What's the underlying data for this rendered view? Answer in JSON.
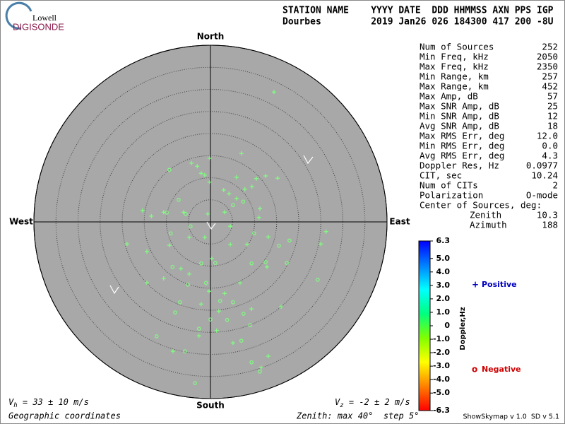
{
  "logo": {
    "small": "Lowell",
    "big": "DIGISONDE"
  },
  "header": {
    "row1": "STATION NAME    YYYY DATE  DDD HHMMSS AXN PPS IGP",
    "row2": "Dourbes         2019 Jan26 026 184300 417 200 -8U"
  },
  "stats": {
    "rows": [
      [
        "Num of Sources",
        "252"
      ],
      [
        "Min Freq, kHz",
        "2050"
      ],
      [
        "Max Freq, kHz",
        "2350"
      ],
      [
        "Min Range, km",
        "257"
      ],
      [
        "Max Range, km",
        "452"
      ],
      [
        "Max Amp, dB",
        "57"
      ],
      [
        "Max SNR Amp, dB",
        "25"
      ],
      [
        "Min SNR Amp, dB",
        "12"
      ],
      [
        "Avg SNR Amp, dB",
        "18"
      ],
      [
        "Max RMS Err, deg",
        "12.0"
      ],
      [
        "Min RMS Err, deg",
        "0.0"
      ],
      [
        "Avg RMS Err, deg",
        "4.3"
      ],
      [
        "Doppler Res, Hz",
        "0.0977"
      ],
      [
        "CIT, sec",
        "10.24"
      ],
      [
        "Num of CITs",
        "2"
      ],
      [
        "Polarization",
        "O-mode"
      ]
    ],
    "center_title": "Center of Sources, deg:",
    "center": [
      [
        "Zenith",
        "10.3"
      ],
      [
        "Azimuth",
        "188"
      ]
    ]
  },
  "chart_data": {
    "type": "skymap",
    "compass": {
      "north": "North",
      "south": "South",
      "east": "East",
      "west": "West"
    },
    "rlim": [
      0,
      40
    ],
    "rings": [
      5,
      10,
      15,
      20,
      25,
      30,
      35,
      40
    ],
    "series": [
      {
        "name": "Positive",
        "symbol": "+",
        "color": "#80ff80",
        "legend_color": "#0000c0",
        "x": [
          14.4,
          -0.2,
          7.0,
          -4.3,
          -3.0,
          -2.1,
          5.9,
          -1.3,
          -0.2,
          10.4,
          12.5,
          15.2,
          3.0,
          4.2,
          7.8,
          9.4,
          5.9,
          11.2,
          11.0,
          -15.4,
          -10.6,
          -13.4,
          -6.1,
          -0.6,
          3.2,
          4.5,
          -18.9,
          -14.4,
          -9.3,
          -4.8,
          -1.3,
          4.5,
          8.3,
          13.1,
          26.2,
          25.0,
          12.8,
          0.3,
          -4.8,
          -10.6,
          -14.4,
          -6.7,
          6.7,
          -0.3,
          3.2,
          -2.1,
          1.9,
          9.3,
          16.0,
          1.4,
          -2.6,
          13.1,
          -8.5,
          5.1,
          11.5
        ],
        "y": [
          29.4,
          14.4,
          15.5,
          13.3,
          12.6,
          11.0,
          10.1,
          10.6,
          9.0,
          9.8,
          10.4,
          9.9,
          7.2,
          6.4,
          7.4,
          8.0,
          5.3,
          3.0,
          1.0,
          2.6,
          2.2,
          1.3,
          2.2,
          1.8,
          2.2,
          -1.0,
          -5.0,
          -6.7,
          -5.3,
          -3.5,
          -3.5,
          -5.1,
          -5.1,
          -3.4,
          -2.2,
          -5.0,
          -10.2,
          -8.3,
          -11.8,
          -12.8,
          -13.8,
          -10.6,
          -13.8,
          -15.7,
          -16.2,
          -18.6,
          -20.2,
          -19.7,
          -19.2,
          -24.6,
          -25.8,
          -30.4,
          -29.3,
          -27.4,
          -33.0
        ]
      },
      {
        "name": "Negative",
        "symbol": "o",
        "color": "#80ff80",
        "legend_color": "#d00000",
        "x": [
          -9.3,
          -9.9,
          -7.2,
          -4.5,
          -9.0,
          -5.6,
          5.1,
          7.4,
          9.9,
          15.5,
          17.9,
          -8.6,
          -2.1,
          1.1,
          9.3,
          12.5,
          -5.1,
          -6.9,
          -1.0,
          2.2,
          5.1,
          7.5,
          3.8,
          0.0,
          -2.6,
          -8.0,
          -12.2,
          -5.8,
          -3.5,
          9.3,
          11.2,
          17.3,
          24.3,
          9.0,
          7.0
        ],
        "y": [
          11.8,
          2.1,
          5.0,
          -1.0,
          -2.6,
          1.8,
          3.8,
          4.6,
          -2.6,
          -5.4,
          -4.2,
          -10.2,
          -9.4,
          -9.3,
          -9.4,
          -9.1,
          -14.2,
          -18.2,
          -13.8,
          -17.9,
          -18.2,
          -20.8,
          -22.2,
          -22.1,
          -24.2,
          -20.5,
          -25.9,
          -29.3,
          -36.5,
          -31.8,
          -33.9,
          -9.3,
          -13.1,
          -23.4,
          -26.9
        ]
      }
    ],
    "colorbar": {
      "label": "Doppler,Hz",
      "lim": [
        -6.3,
        6.3
      ],
      "colors": [
        "#ff0000",
        "#ff8000",
        "#ffff00",
        "#80ff00",
        "#00ff80",
        "#00ffff",
        "#0080ff",
        "#0000ff"
      ],
      "ticks": [
        6.3,
        {
          "value": 5,
          "label": "5.0"
        },
        {
          "value": 4,
          "label": "4.0"
        },
        {
          "value": 3,
          "label": "3.0"
        },
        {
          "value": 2,
          "label": "2.0"
        },
        {
          "value": 1,
          "label": "1.0"
        },
        0,
        {
          "value": -1,
          "label": "-1.0"
        },
        {
          "value": -2,
          "label": "-2.0"
        },
        {
          "value": -3,
          "label": "-3.0"
        },
        {
          "value": -4,
          "label": "-4.0"
        },
        {
          "value": -5,
          "label": "-5.0"
        },
        -6.3
      ]
    }
  },
  "footer": {
    "vh": [
      "V",
      "h",
      " = 33 ± 10 m/s"
    ],
    "vz": [
      "V",
      "z",
      " = -2 ± 2 m/s"
    ],
    "coords": "Geographic coordinates",
    "zenith": "Zenith: max 40°  step 5°",
    "version": "ShowSkymap v 1.0  SD v 5.1"
  }
}
